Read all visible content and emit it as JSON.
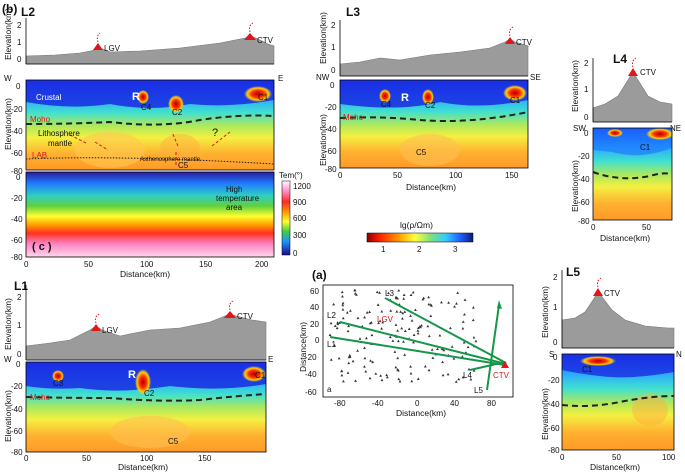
{
  "figure": {
    "panel_b": "(b)",
    "panel_a": "(a)",
    "panel_c": "( c )",
    "panel_a_inner": "a"
  },
  "labels": {
    "elev_km": "Elevation(km)",
    "distance_km": "Distance(km)",
    "lg": "lg(ρ/Ωm)",
    "tem": "Tem(°)"
  },
  "volcanoes": {
    "lgv": "LGV",
    "ctv": "CTV"
  },
  "profiles": {
    "l1": {
      "name": "L1",
      "west": "W",
      "east": "E",
      "annotations": {
        "c3": "C3",
        "r": "R",
        "c2": "C2",
        "c1": "C1",
        "c5": "C5",
        "moho": "Moho"
      }
    },
    "l2": {
      "name": "L2",
      "west": "W",
      "east": "E",
      "annotations": {
        "crustal": "Crustal",
        "r": "R",
        "c4": "C4",
        "c2": "C2",
        "c1": "C1",
        "c5": "C5",
        "moho": "Moho",
        "lithosphere": "Lithosphere",
        "mantle": "mantle",
        "lab": "LAB",
        "asthenosphere": "Asthenosphere mantle",
        "question": "?"
      }
    },
    "l3": {
      "name": "L3",
      "west": "NW",
      "east": "SE",
      "annotations": {
        "c4": "C4",
        "r": "R",
        "c2": "C2",
        "c1": "C1",
        "c5": "C5",
        "moho": "Moho"
      }
    },
    "l4": {
      "name": "L4",
      "west": "SW",
      "east": "NE",
      "annotations": {
        "c1": "C1"
      }
    },
    "l5": {
      "name": "L5",
      "west": "S",
      "east": "N",
      "annotations": {
        "c1": "C1"
      }
    }
  },
  "thermal": {
    "high_temp_1": "High",
    "high_temp_2": "temperature",
    "high_temp_3": "area"
  },
  "resistivity_colorbar": {
    "ticks": [
      "1",
      "2",
      "3"
    ]
  },
  "temperature_colorbar": {
    "ticks": [
      "1200",
      "900",
      "600",
      "300",
      "0"
    ]
  },
  "map": {
    "profile_labels": [
      "L1",
      "L2",
      "L3",
      "L4",
      "L5"
    ]
  },
  "ticks": {
    "topo_y": [
      "2",
      "1",
      "0"
    ],
    "depth_y": [
      "0",
      "-20",
      "-40",
      "-60",
      "-80"
    ],
    "depth_y_l1": [
      "0",
      "-20",
      "-40",
      "-60",
      "-80"
    ],
    "x_0_200": [
      "0",
      "50",
      "100",
      "150",
      "200"
    ],
    "x_0_150": [
      "0",
      "50",
      "100",
      "150"
    ],
    "x_0_100": [
      "0",
      "50",
      "100"
    ],
    "x_l4": [
      "0",
      "50"
    ],
    "map_x": [
      "-80",
      "-40",
      "0",
      "40",
      "80"
    ],
    "map_y": [
      "60",
      "40",
      "20",
      "0",
      "-20",
      "-40",
      "-60"
    ]
  },
  "colors": {
    "topo_fill": "#9b9b9b",
    "volcano": "#e0161b",
    "moho_line": "#222222",
    "profile_line": "#16964a",
    "station": "#333333",
    "accent_red": "#d7191c"
  }
}
